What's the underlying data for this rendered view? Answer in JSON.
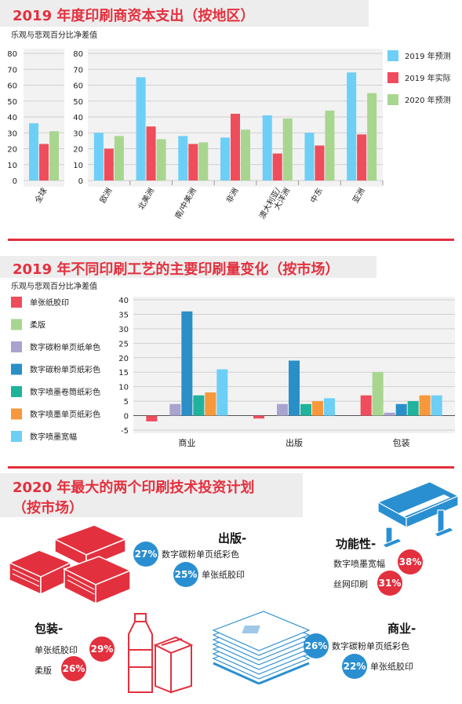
{
  "section1": {
    "title": "2019 年度印刷商资本支出（按地区）",
    "subtitle": "乐观与悲观百分比净差值"
  },
  "section2": {
    "title": "2019 年不同印刷工艺的主要印刷量变化（按市场）",
    "subtitle": "乐观与悲观百分比净差值"
  },
  "section3": {
    "title_line1": "2020 年最大的两个印刷技术投资计划",
    "title_line2": "（按市场）",
    "publishing": {
      "label": "出版-",
      "items": [
        {
          "pct": "27%",
          "text": "数字碳粉单页纸彩色"
        },
        {
          "pct": "25%",
          "text": "单张纸胶印"
        }
      ]
    },
    "functional": {
      "label": "功能性-",
      "items": [
        {
          "pct": "38%",
          "text": "数字喷墨宽幅"
        },
        {
          "pct": "31%",
          "text": "丝网印刷"
        }
      ]
    },
    "packaging": {
      "label": "包装-",
      "items": [
        {
          "pct": "29%",
          "text": "单张纸胶印"
        },
        {
          "pct": "26%",
          "text": "柔版"
        }
      ]
    },
    "commercial": {
      "label": "商业-",
      "items": [
        {
          "pct": "26%",
          "text": "数字碳粉单页纸彩色"
        },
        {
          "pct": "22%",
          "text": "单张纸胶印"
        }
      ]
    }
  },
  "colors": {
    "blue": "#6dcff6",
    "red": "#ef4d5c",
    "green": "#a8d68f",
    "lavender": "#a9a3cf",
    "darkblue": "#2a8fc7",
    "teal": "#1fb39b",
    "orange": "#f7983a",
    "accent": "#e3303e"
  },
  "chart_data": [
    {
      "type": "bar",
      "title": "2019 年度印刷商资本支出（按地区）",
      "ylim": [
        0,
        80
      ],
      "yticks": [
        0,
        10,
        20,
        30,
        40,
        50,
        60,
        70,
        80
      ],
      "legend_position": "right",
      "series": [
        {
          "name": "2019 年预测",
          "color": "#6dcff6"
        },
        {
          "name": "2019 年实际",
          "color": "#ef4d5c"
        },
        {
          "name": "2020 年预测",
          "color": "#a8d68f"
        }
      ],
      "left_panel": {
        "categories": [
          "全球"
        ],
        "values": [
          [
            36,
            23,
            31
          ]
        ]
      },
      "right_panel": {
        "categories": [
          "欧洲",
          "北美洲",
          "南/中美洲",
          "非洲",
          "澳大利亚/大洋洲",
          "中东",
          "亚洲"
        ],
        "category_lines": [
          [
            "欧洲"
          ],
          [
            "北美洲"
          ],
          [
            "南/中美洲"
          ],
          [
            "非洲"
          ],
          [
            "澳大利亚/",
            "大洋洲"
          ],
          [
            "中东"
          ],
          [
            "亚洲"
          ]
        ],
        "values": [
          [
            30,
            20,
            28
          ],
          [
            65,
            34,
            26
          ],
          [
            28,
            23,
            24
          ],
          [
            27,
            42,
            32
          ],
          [
            41,
            17,
            39
          ],
          [
            30,
            22,
            44
          ],
          [
            68,
            29,
            55
          ]
        ]
      }
    },
    {
      "type": "bar",
      "title": "2019 年不同印刷工艺的主要印刷量变化（按市场）",
      "ylim": [
        -5,
        40
      ],
      "yticks": [
        -5,
        0,
        5,
        10,
        15,
        20,
        25,
        30,
        35,
        40
      ],
      "legend_position": "left",
      "categories": [
        "商业",
        "出版",
        "包装"
      ],
      "series": [
        {
          "name": "单张纸胶印",
          "color": "#ef4d5c",
          "values": [
            -2,
            -1,
            7
          ]
        },
        {
          "name": "柔版",
          "color": "#a8d68f",
          "values": [
            0,
            0,
            15
          ]
        },
        {
          "name": "数字碳粉单页纸单色",
          "color": "#a9a3cf",
          "values": [
            4,
            4,
            1
          ]
        },
        {
          "name": "数字碳粉单页纸彩色",
          "color": "#2a8fc7",
          "values": [
            36,
            19,
            4
          ]
        },
        {
          "name": "数字喷墨卷筒纸彩色",
          "color": "#1fb39b",
          "values": [
            7,
            4,
            5
          ]
        },
        {
          "name": "数字喷墨单页纸彩色",
          "color": "#f7983a",
          "values": [
            8,
            5,
            7
          ]
        },
        {
          "name": "数字喷墨宽幅",
          "color": "#6dcff6",
          "values": [
            16,
            6,
            7
          ]
        }
      ]
    }
  ]
}
